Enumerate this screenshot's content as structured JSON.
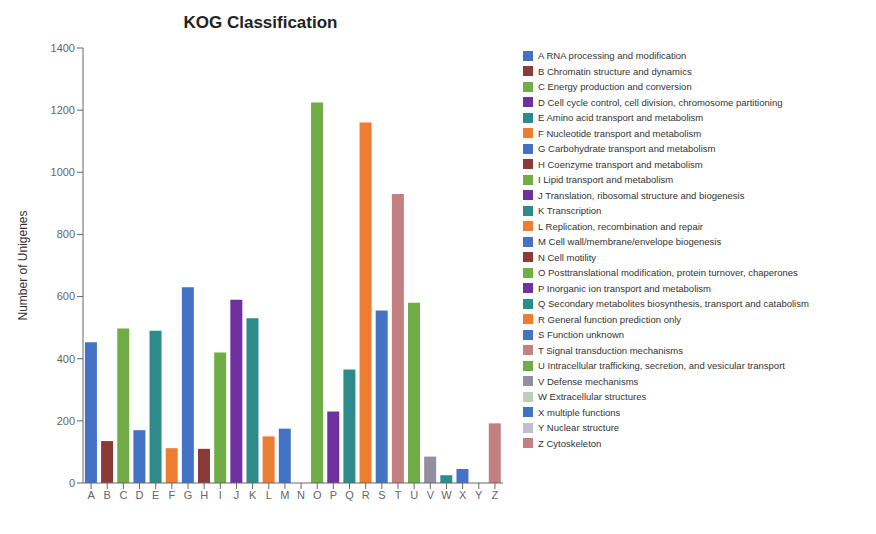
{
  "chart_data": {
    "type": "bar",
    "title": "KOG Classification",
    "ylabel": "Number of Unigenes",
    "categories": [
      "A",
      "B",
      "C",
      "D",
      "E",
      "F",
      "G",
      "H",
      "I",
      "J",
      "K",
      "L",
      "M",
      "N",
      "O",
      "P",
      "Q",
      "R",
      "S",
      "T",
      "U",
      "V",
      "W",
      "X",
      "Y",
      "Z"
    ],
    "values": [
      453,
      135,
      497,
      170,
      490,
      112,
      630,
      110,
      420,
      590,
      530,
      150,
      175,
      0,
      1225,
      230,
      365,
      1160,
      555,
      930,
      580,
      85,
      25,
      45,
      0,
      192
    ],
    "colors": [
      "#4472C4",
      "#8B3A3A",
      "#70AD47",
      "#4472C4",
      "#2E8B8B",
      "#ED7D31",
      "#4472C4",
      "#8B3A3A",
      "#70AD47",
      "#7030A0",
      "#2E8B8B",
      "#ED7D31",
      "#4472C4",
      "#8B3A3A",
      "#70AD47",
      "#7030A0",
      "#2E8B8B",
      "#ED7D31",
      "#4472C4",
      "#C48080",
      "#70AD47",
      "#9090A0",
      "#2E8B8B",
      "#4472C4",
      "#B0B0C0",
      "#C48080"
    ],
    "ylim": [
      0,
      1400
    ],
    "yticks": [
      0,
      200,
      400,
      600,
      800,
      1000,
      1200,
      1400
    ],
    "grid": false,
    "legend": "right",
    "legend_labels": [
      "A RNA processing and modification",
      "B Chromatin structure and dynamics",
      "C Energy production and conversion",
      "D Cell cycle control, cell division, chromosome partitioning",
      "E Amino acid transport and metabolism",
      "F Nucleotide transport and metabolism",
      "G Carbohydrate transport and metabolism",
      "H Coenzyme transport and metabolism",
      "I Lipid transport and metabolism",
      "J Translation, ribosomal structure and biogenesis",
      "K Transcription",
      "L Replication, recombination and repair",
      "M Cell wall/membrane/envelope biogenesis",
      "N Cell motility",
      "O Posttranslational modification, protein turnover, chaperones",
      "P Inorganic ion transport and metabolism",
      "Q Secondary metabolites biosynthesis, transport and catabolism",
      "R General function prediction only",
      "S Function unknown",
      "T Signal transduction mechanisms",
      "U Intracellular trafficking, secretion, and vesicular transport",
      "V Defense mechanisms",
      "W Extracellular structures",
      "X multiple functions",
      "Y Nuclear structure",
      "Z Cytoskeleton"
    ],
    "legend_colors": [
      "#4472C4",
      "#8B3A3A",
      "#70AD47",
      "#7030A0",
      "#2E8B8B",
      "#ED7D31",
      "#4472C4",
      "#8B3A3A",
      "#70AD47",
      "#7030A0",
      "#2E8B8B",
      "#ED7D31",
      "#4472C4",
      "#8B3A3A",
      "#70AD47",
      "#7030A0",
      "#2E8B8B",
      "#ED7D31",
      "#4472C4",
      "#C48080",
      "#70AD47",
      "#9090A0",
      "#B8D0B8",
      "#4472C4",
      "#C0C0CC",
      "#C48080"
    ]
  }
}
